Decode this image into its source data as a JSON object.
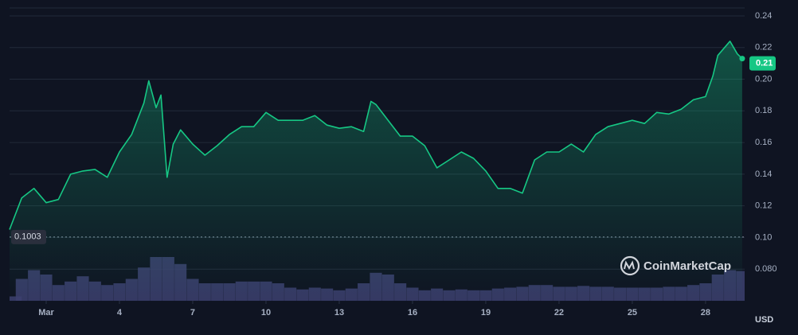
{
  "chart_data": {
    "type": "line",
    "x": [
      -0.5,
      0,
      0.5,
      1,
      1.5,
      2,
      2.5,
      3,
      3.5,
      4,
      4.5,
      5,
      5.2,
      5.5,
      5.7,
      5.95,
      6.2,
      6.5,
      7,
      7.5,
      8,
      8.5,
      9,
      9.5,
      10,
      10.5,
      11,
      11.5,
      12,
      12.5,
      13,
      13.5,
      14,
      14.3,
      14.5,
      15,
      15.5,
      16,
      16.5,
      17,
      17.5,
      18,
      18.5,
      19,
      19.5,
      20,
      20.5,
      21,
      21.5,
      22,
      22.5,
      23,
      23.5,
      24,
      24.5,
      25,
      25.5,
      26,
      26.5,
      27,
      27.5,
      28,
      28.3,
      28.5,
      29,
      29.3,
      29.5
    ],
    "series": [
      {
        "color": "#16c784",
        "values": [
          0.105,
          0.125,
          0.131,
          0.122,
          0.124,
          0.14,
          0.142,
          0.143,
          0.138,
          0.154,
          0.165,
          0.185,
          0.199,
          0.182,
          0.19,
          0.138,
          0.159,
          0.168,
          0.159,
          0.152,
          0.158,
          0.165,
          0.17,
          0.17,
          0.179,
          0.174,
          0.174,
          0.174,
          0.177,
          0.171,
          0.169,
          0.17,
          0.167,
          0.186,
          0.184,
          0.174,
          0.164,
          0.164,
          0.158,
          0.144,
          0.149,
          0.154,
          0.15,
          0.142,
          0.131,
          0.131,
          0.128,
          0.149,
          0.154,
          0.154,
          0.159,
          0.154,
          0.165,
          0.17,
          0.172,
          0.174,
          0.172,
          0.179,
          0.178,
          0.181,
          0.187,
          0.189,
          0.202,
          0.215,
          0.224,
          0.216,
          0.213
        ]
      }
    ],
    "volume": {
      "color": "#3c3f6e",
      "x": [
        -0.5,
        0,
        0.5,
        1,
        1.5,
        2,
        2.5,
        3,
        3.5,
        4,
        4.5,
        5,
        5.5,
        6,
        6.5,
        7,
        7.5,
        8,
        8.5,
        9,
        9.5,
        10,
        10.5,
        11,
        11.5,
        12,
        12.5,
        13,
        13.5,
        14,
        14.5,
        15,
        15.5,
        16,
        16.5,
        17,
        17.5,
        18,
        18.5,
        19,
        19.5,
        20,
        20.5,
        21,
        21.5,
        22,
        22.5,
        23,
        23.5,
        24,
        24.5,
        25,
        25.5,
        26,
        26.5,
        27,
        27.5,
        28,
        28.5,
        29,
        29.5
      ],
      "values": [
        5,
        25,
        35,
        30,
        18,
        22,
        28,
        22,
        18,
        20,
        25,
        38,
        50,
        50,
        42,
        25,
        20,
        20,
        20,
        22,
        22,
        22,
        20,
        15,
        13,
        15,
        14,
        12,
        14,
        20,
        32,
        30,
        20,
        15,
        12,
        14,
        12,
        13,
        12,
        12,
        14,
        15,
        16,
        18,
        18,
        16,
        16,
        17,
        16,
        16,
        15,
        15,
        15,
        15,
        16,
        16,
        18,
        20,
        30,
        35,
        34
      ]
    },
    "xlim": [
      -0.5,
      29.6
    ],
    "xticks": [
      {
        "value": 1,
        "label": "Mar"
      },
      4,
      7,
      10,
      13,
      16,
      19,
      22,
      25,
      28
    ],
    "ylim": [
      0.06,
      0.245
    ],
    "yticks": [
      0.24,
      0.22,
      {
        "value": 0.2,
        "label": "0.20"
      },
      0.18,
      0.16,
      0.14,
      0.12,
      {
        "value": 0.1,
        "label": "0.10"
      },
      {
        "value": 0.08,
        "label": "0.080"
      }
    ],
    "grid": true,
    "baseline": 0.1003,
    "current_price": 0.21,
    "currency": "USD",
    "watermark": "CoinMarketCap"
  }
}
